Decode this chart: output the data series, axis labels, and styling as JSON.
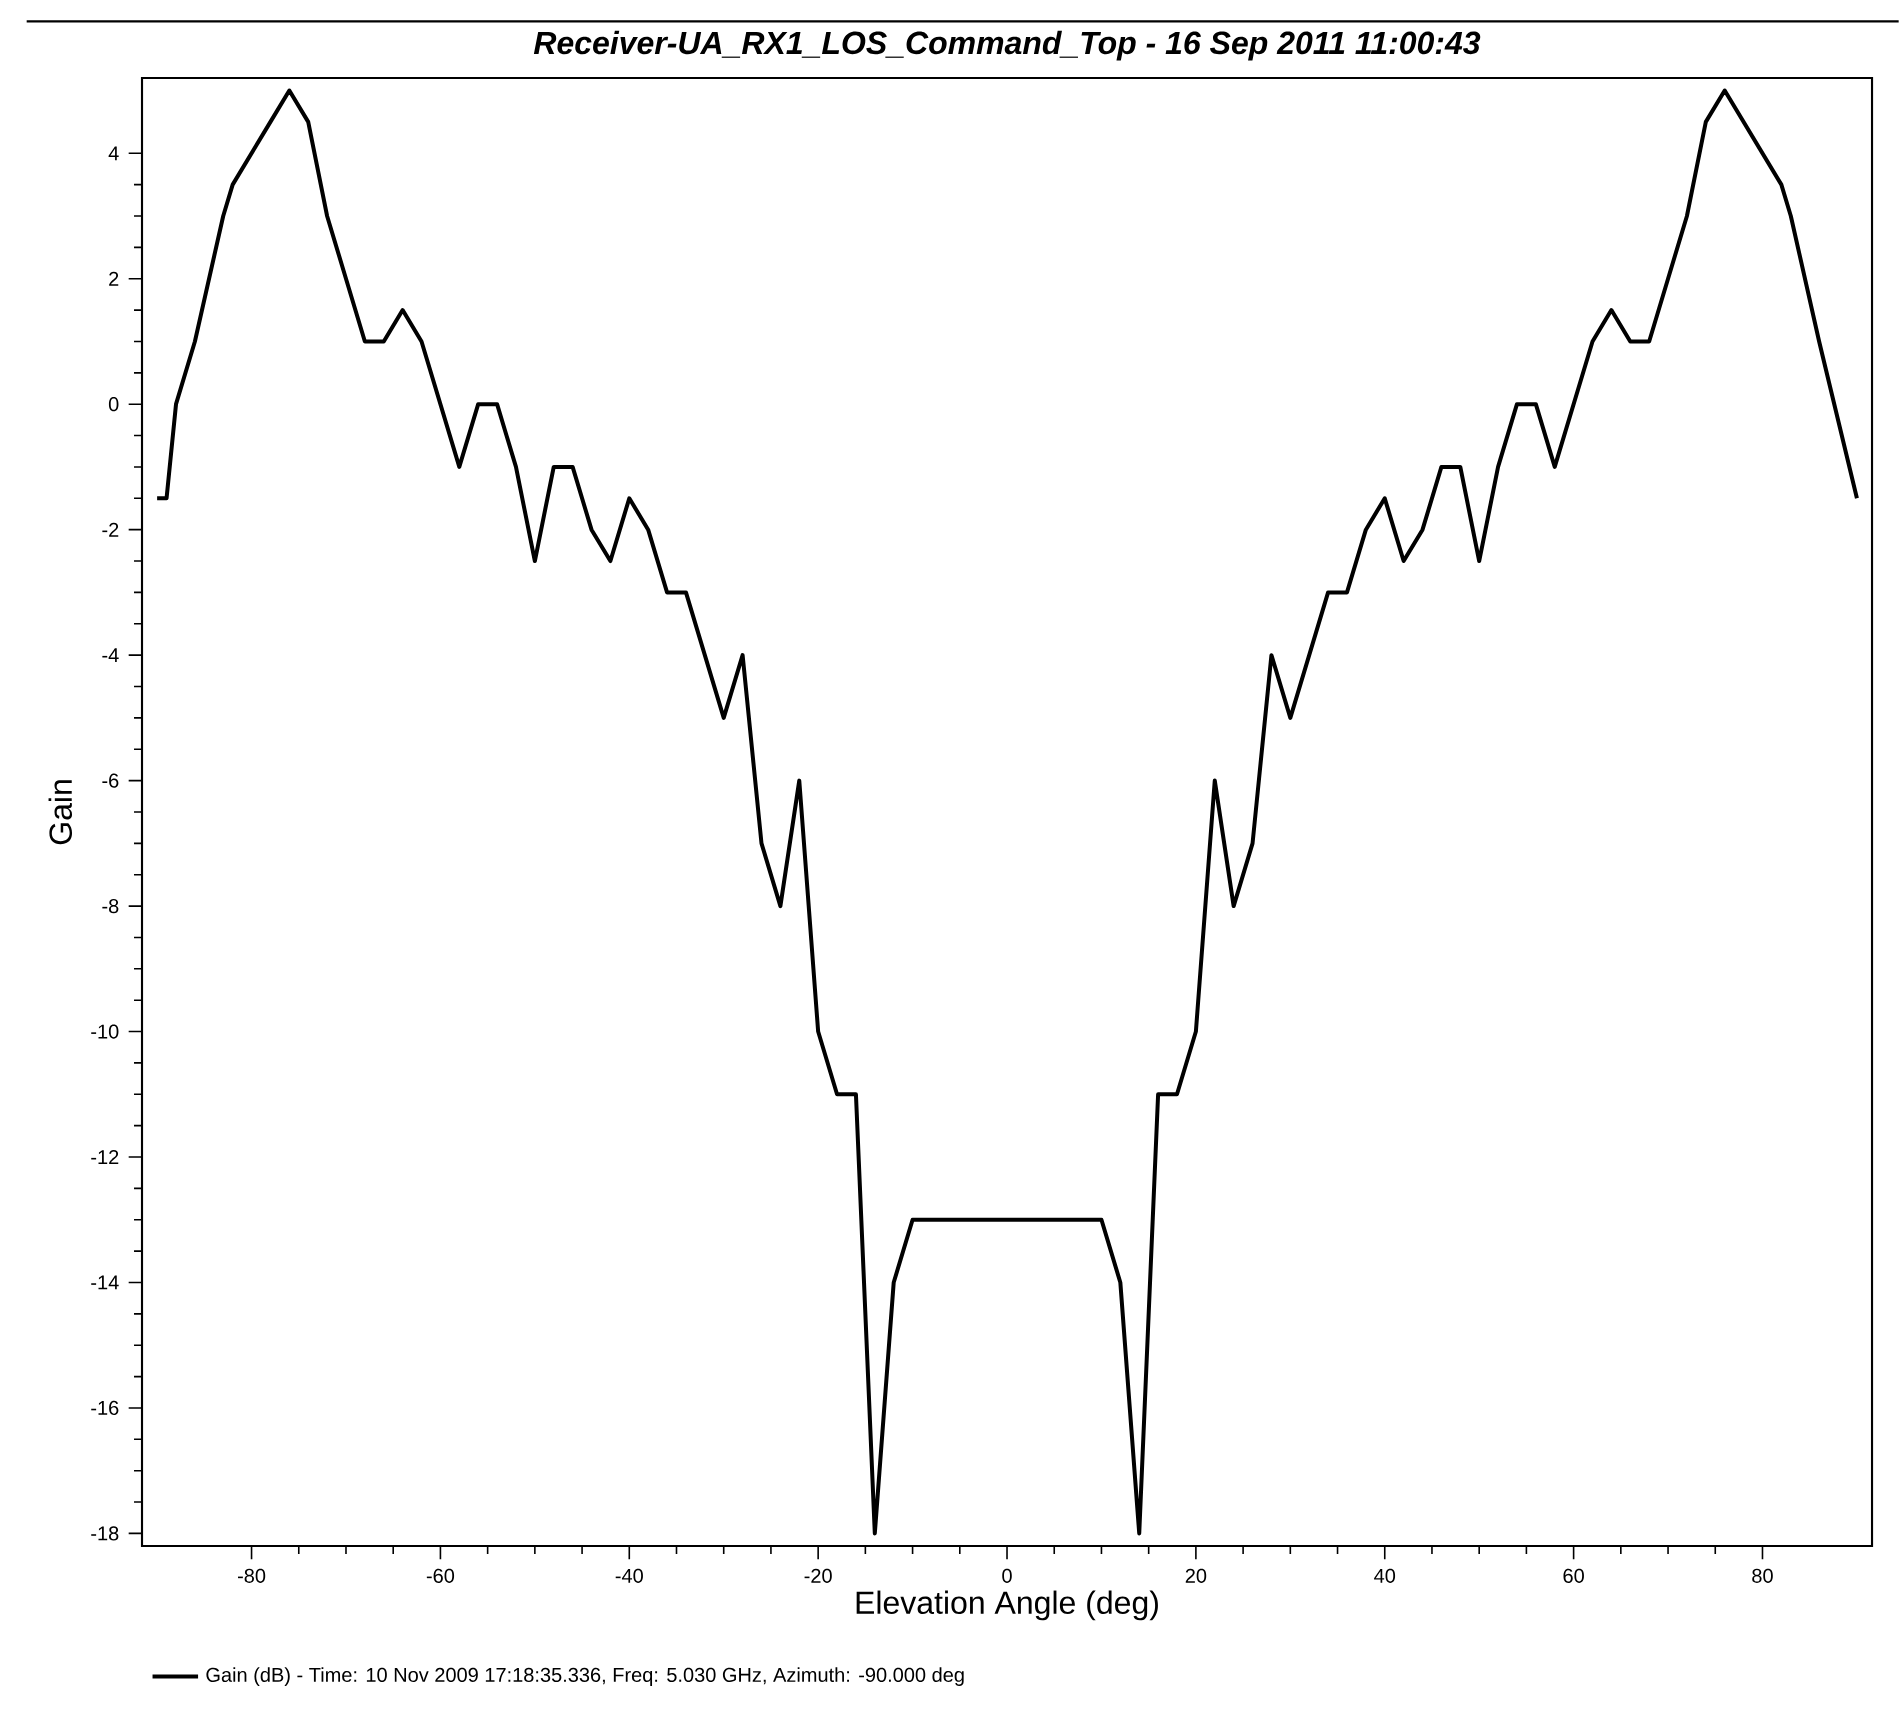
{
  "chart_data": {
    "type": "line",
    "title": "Receiver-UA_RX1_LOS_Command_Top - 16 Sep 2011 11:00:43",
    "xlabel": "Elevation Angle (deg)",
    "ylabel": "Gain",
    "series": [
      {
        "name": "Gain (dB) - Time: 10 Nov 2009 17:18:35.336, Freq: 5.030 GHz, Azimuth: -90.000 deg",
        "color": "#000000",
        "x": [
          -90,
          -89,
          -88,
          -86,
          -83,
          -82,
          -80,
          -78,
          -76,
          -74,
          -72,
          -70,
          -68,
          -66,
          -64,
          -62,
          -58,
          -56,
          -54,
          -52,
          -50,
          -48,
          -46,
          -44,
          -42,
          -40,
          -38,
          -36,
          -34,
          -30,
          -28,
          -26,
          -24,
          -22,
          -20,
          -18,
          -16,
          -14,
          -12,
          -10,
          10,
          12,
          14,
          16,
          18,
          20,
          22,
          24,
          26,
          28,
          30,
          34,
          36,
          38,
          40,
          42,
          44,
          46,
          48,
          50,
          52,
          54,
          56,
          58,
          62,
          64,
          66,
          68,
          70,
          72,
          74,
          76,
          82,
          83,
          86,
          90
        ],
        "values": [
          -1.5,
          -1.5,
          0,
          1,
          3,
          3.5,
          4,
          4.5,
          5,
          4.5,
          3,
          2,
          1,
          1,
          1.5,
          1,
          -1,
          0,
          0,
          -1,
          -2.5,
          -1,
          -1,
          -2,
          -2.5,
          -1.5,
          -2,
          -3,
          -3,
          -5,
          -4,
          -7,
          -8,
          -6,
          -10,
          -11,
          -11,
          -18,
          -14,
          -13,
          -13,
          -14,
          -18,
          -11,
          -11,
          -10,
          -6,
          -8,
          -7,
          -4,
          -5,
          -3,
          -3,
          -2,
          -1.5,
          -2.5,
          -2,
          -1,
          -1,
          -2.5,
          -1,
          0,
          0,
          -1,
          1,
          1.5,
          1,
          1,
          2,
          3,
          4.5,
          5,
          3.5,
          3,
          1,
          -1.5
        ]
      }
    ],
    "xlim": [
      -91.6,
      91.6
    ],
    "ylim": [
      -18.2,
      5.2
    ],
    "xticks": [
      -80,
      -60,
      -40,
      -20,
      0,
      20,
      40,
      60,
      80
    ],
    "yticks": [
      -18,
      -16,
      -14,
      -12,
      -10,
      -8,
      -6,
      -4,
      -2,
      0,
      2,
      4
    ],
    "grid": false,
    "legend": "bottom left",
    "marker": "none",
    "line_style": "solid"
  }
}
